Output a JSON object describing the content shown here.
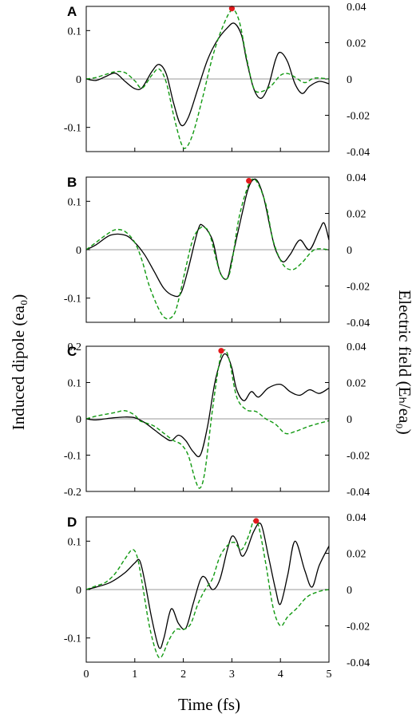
{
  "figure": {
    "ylabel_left": "Induced dipole (ea₀)",
    "ylabel_right": "Electric field (Eₕ/ea₀)",
    "xlabel": "Time (fs)",
    "colors": {
      "dipole": "#000000",
      "field": "#119911",
      "marker": "#e31a1c",
      "zero_line": "#999999"
    }
  },
  "chart_data": [
    {
      "panel": "A",
      "type": "line",
      "xlim": [
        0,
        5
      ],
      "ylim_left": [
        -0.15,
        0.15
      ],
      "ylim_right": [
        -0.04,
        0.04
      ],
      "left_ticks": [
        "0.1",
        "0",
        "-0.1"
      ],
      "left_tick_values": [
        0.1,
        0,
        -0.1
      ],
      "right_ticks": [
        "0.04",
        "0.02",
        "0",
        "-0.02",
        "-0.04"
      ],
      "right_tick_values": [
        0.04,
        0.02,
        0,
        -0.02,
        -0.04
      ],
      "series": [
        {
          "axis": "left",
          "style": "solid",
          "color": "#000000",
          "x": [
            0,
            0.2,
            0.4,
            0.6,
            0.8,
            1.0,
            1.15,
            1.35,
            1.5,
            1.65,
            1.8,
            1.95,
            2.1,
            2.3,
            2.5,
            2.7,
            2.9,
            3.05,
            3.2,
            3.3,
            3.45,
            3.6,
            3.75,
            3.9,
            4.0,
            4.15,
            4.3,
            4.45,
            4.6,
            4.8,
            5.0
          ],
          "y": [
            0,
            -0.003,
            0.005,
            0.012,
            -0.005,
            -0.02,
            -0.018,
            0.015,
            0.03,
            0.01,
            -0.05,
            -0.095,
            -0.08,
            -0.02,
            0.04,
            0.08,
            0.105,
            0.115,
            0.09,
            0.04,
            -0.02,
            -0.04,
            -0.015,
            0.04,
            0.055,
            0.035,
            -0.01,
            -0.03,
            -0.015,
            -0.005,
            -0.01
          ]
        },
        {
          "axis": "right",
          "style": "dashed",
          "color": "#119911",
          "x": [
            0,
            0.2,
            0.4,
            0.6,
            0.8,
            1.0,
            1.15,
            1.35,
            1.5,
            1.65,
            1.8,
            1.95,
            2.05,
            2.2,
            2.4,
            2.6,
            2.8,
            3.0,
            3.15,
            3.3,
            3.45,
            3.6,
            3.8,
            4.0,
            4.15,
            4.3,
            4.5,
            4.7,
            5.0
          ],
          "y": [
            0,
            0.0008,
            0.0025,
            0.004,
            0.0035,
            -0.001,
            -0.005,
            0.002,
            0.0055,
            -0.002,
            -0.02,
            -0.035,
            -0.038,
            -0.03,
            -0.01,
            0.012,
            0.028,
            0.038,
            0.032,
            0.012,
            -0.005,
            -0.007,
            -0.004,
            0.002,
            0.003,
            0.001,
            -0.002,
            0.0005,
            0
          ]
        },
        {
          "axis": "right",
          "style": "marker",
          "color": "#e31a1c",
          "x": [
            3.0
          ],
          "y": [
            0.0388
          ]
        }
      ]
    },
    {
      "panel": "B",
      "type": "line",
      "xlim": [
        0,
        5
      ],
      "ylim_left": [
        -0.15,
        0.15
      ],
      "ylim_right": [
        -0.04,
        0.04
      ],
      "left_ticks": [
        "0.1",
        "0",
        "-0.1"
      ],
      "left_tick_values": [
        0.1,
        0,
        -0.1
      ],
      "right_ticks": [
        "0.04",
        "0.02",
        "0",
        "-0.02",
        "-0.04"
      ],
      "right_tick_values": [
        0.04,
        0.02,
        0,
        -0.02,
        -0.04
      ],
      "series": [
        {
          "axis": "left",
          "style": "solid",
          "color": "#000000",
          "x": [
            0,
            0.2,
            0.5,
            0.8,
            1.0,
            1.2,
            1.4,
            1.6,
            1.8,
            1.95,
            2.1,
            2.3,
            2.4,
            2.6,
            2.75,
            2.9,
            3.0,
            3.2,
            3.35,
            3.5,
            3.65,
            3.8,
            3.9,
            4.05,
            4.2,
            4.4,
            4.6,
            4.8,
            4.9,
            5.0
          ],
          "y": [
            0,
            0.01,
            0.03,
            0.03,
            0.015,
            -0.01,
            -0.045,
            -0.08,
            -0.095,
            -0.09,
            -0.04,
            0.04,
            0.05,
            0.02,
            -0.045,
            -0.06,
            -0.02,
            0.07,
            0.13,
            0.145,
            0.11,
            0.04,
            0.0,
            -0.025,
            -0.01,
            0.02,
            0.0,
            0.04,
            0.055,
            0.02
          ]
        },
        {
          "axis": "right",
          "style": "dashed",
          "color": "#119911",
          "x": [
            0,
            0.2,
            0.4,
            0.6,
            0.8,
            1.0,
            1.15,
            1.3,
            1.5,
            1.65,
            1.8,
            1.9,
            2.05,
            2.2,
            2.35,
            2.45,
            2.55,
            2.75,
            2.9,
            3.0,
            3.15,
            3.35,
            3.5,
            3.7,
            3.85,
            4.05,
            4.25,
            4.45,
            4.7,
            5.0
          ],
          "y": [
            0,
            0.004,
            0.008,
            0.011,
            0.01,
            0.004,
            -0.006,
            -0.02,
            -0.033,
            -0.038,
            -0.036,
            -0.028,
            -0.01,
            0.006,
            0.012,
            0.012,
            0.008,
            -0.012,
            -0.016,
            -0.007,
            0.018,
            0.036,
            0.038,
            0.025,
            0.005,
            -0.008,
            -0.011,
            -0.007,
            0,
            0
          ]
        },
        {
          "axis": "right",
          "style": "marker",
          "color": "#e31a1c",
          "x": [
            3.35
          ],
          "y": [
            0.038
          ]
        }
      ]
    },
    {
      "panel": "C",
      "type": "line",
      "xlim": [
        0,
        5
      ],
      "ylim_left": [
        -0.2,
        0.2
      ],
      "ylim_right": [
        -0.04,
        0.04
      ],
      "left_ticks": [
        "0.2",
        "0.1",
        "0",
        "-0.1",
        "-0.2"
      ],
      "left_tick_values": [
        0.2,
        0.1,
        0,
        -0.1,
        -0.2
      ],
      "right_ticks": [
        "0.04",
        "0.02",
        "0",
        "-0.02",
        "-0.04"
      ],
      "right_tick_values": [
        0.04,
        0.02,
        0,
        -0.02,
        -0.04
      ],
      "series": [
        {
          "axis": "left",
          "style": "solid",
          "color": "#000000",
          "x": [
            0,
            0.2,
            0.5,
            0.8,
            1.0,
            1.2,
            1.4,
            1.6,
            1.75,
            1.9,
            2.05,
            2.2,
            2.35,
            2.5,
            2.65,
            2.8,
            2.9,
            3.0,
            3.1,
            3.25,
            3.4,
            3.55,
            3.75,
            4.0,
            4.2,
            4.4,
            4.6,
            4.8,
            5.0
          ],
          "y": [
            0,
            -0.003,
            0.002,
            0.005,
            0.003,
            -0.01,
            -0.03,
            -0.05,
            -0.06,
            -0.045,
            -0.06,
            -0.09,
            -0.1,
            -0.02,
            0.1,
            0.17,
            0.175,
            0.14,
            0.08,
            0.05,
            0.075,
            0.06,
            0.085,
            0.095,
            0.075,
            0.065,
            0.08,
            0.07,
            0.085
          ]
        },
        {
          "axis": "right",
          "style": "dashed",
          "color": "#119911",
          "x": [
            0,
            0.2,
            0.4,
            0.6,
            0.8,
            1.0,
            1.1,
            1.2,
            1.4,
            1.6,
            1.8,
            1.95,
            2.1,
            2.25,
            2.35,
            2.45,
            2.6,
            2.75,
            2.85,
            2.95,
            3.1,
            3.3,
            3.5,
            3.7,
            3.9,
            4.1,
            4.3,
            4.6,
            5.0
          ],
          "y": [
            0,
            0.0015,
            0.0025,
            0.0035,
            0.0045,
            0.002,
            -0.001,
            -0.002,
            -0.004,
            -0.008,
            -0.012,
            -0.014,
            -0.02,
            -0.034,
            -0.038,
            -0.028,
            0.005,
            0.032,
            0.038,
            0.032,
            0.012,
            0.005,
            0.004,
            0,
            -0.003,
            -0.008,
            -0.007,
            -0.004,
            -0.001
          ]
        },
        {
          "axis": "right",
          "style": "marker",
          "color": "#e31a1c",
          "x": [
            2.78
          ],
          "y": [
            0.0375
          ]
        }
      ]
    },
    {
      "panel": "D",
      "type": "line",
      "xlim": [
        0,
        5
      ],
      "ylim_left": [
        -0.15,
        0.15
      ],
      "ylim_right": [
        -0.04,
        0.04
      ],
      "left_ticks": [
        "0.1",
        "0",
        "-0.1"
      ],
      "left_tick_values": [
        0.1,
        0,
        -0.1
      ],
      "right_ticks": [
        "0.04",
        "0.02",
        "0",
        "-0.02",
        "-0.04"
      ],
      "right_tick_values": [
        0.04,
        0.02,
        0,
        -0.02,
        -0.04
      ],
      "series": [
        {
          "axis": "left",
          "style": "solid",
          "color": "#000000",
          "x": [
            0,
            0.2,
            0.5,
            0.8,
            1.0,
            1.1,
            1.2,
            1.35,
            1.5,
            1.6,
            1.75,
            1.9,
            2.05,
            2.2,
            2.35,
            2.45,
            2.6,
            2.75,
            2.9,
            3.0,
            3.1,
            3.2,
            3.3,
            3.45,
            3.6,
            3.75,
            3.9,
            4.0,
            4.15,
            4.3,
            4.5,
            4.65,
            4.8,
            5.0
          ],
          "y": [
            0,
            0.005,
            0.015,
            0.035,
            0.055,
            0.06,
            0.02,
            -0.06,
            -0.12,
            -0.1,
            -0.04,
            -0.07,
            -0.08,
            -0.03,
            0.02,
            0.025,
            0.0,
            0.02,
            0.08,
            0.11,
            0.1,
            0.07,
            0.08,
            0.12,
            0.135,
            0.07,
            0.0,
            -0.03,
            0.03,
            0.1,
            0.04,
            0.005,
            0.05,
            0.09
          ]
        },
        {
          "axis": "right",
          "style": "dashed",
          "color": "#119911",
          "x": [
            0,
            0.2,
            0.4,
            0.6,
            0.8,
            0.95,
            1.05,
            1.15,
            1.3,
            1.45,
            1.55,
            1.7,
            1.85,
            2.0,
            2.15,
            2.3,
            2.45,
            2.6,
            2.75,
            2.9,
            3.05,
            3.2,
            3.35,
            3.45,
            3.55,
            3.7,
            3.85,
            4.0,
            4.15,
            4.35,
            4.55,
            4.8,
            5.0
          ],
          "y": [
            0,
            0.002,
            0.004,
            0.009,
            0.017,
            0.022,
            0.018,
            0.004,
            -0.02,
            -0.035,
            -0.037,
            -0.028,
            -0.022,
            -0.022,
            -0.019,
            -0.008,
            0.0,
            0.006,
            0.018,
            0.024,
            0.026,
            0.022,
            0.03,
            0.038,
            0.035,
            0.014,
            -0.01,
            -0.02,
            -0.015,
            -0.01,
            -0.004,
            -0.001,
            0
          ]
        },
        {
          "axis": "right",
          "style": "marker",
          "color": "#e31a1c",
          "x": [
            3.5
          ],
          "y": [
            0.0378
          ]
        }
      ]
    }
  ],
  "x_ticks": [
    "0",
    "1",
    "2",
    "3",
    "4",
    "5"
  ],
  "x_tick_values": [
    0,
    1,
    2,
    3,
    4,
    5
  ]
}
